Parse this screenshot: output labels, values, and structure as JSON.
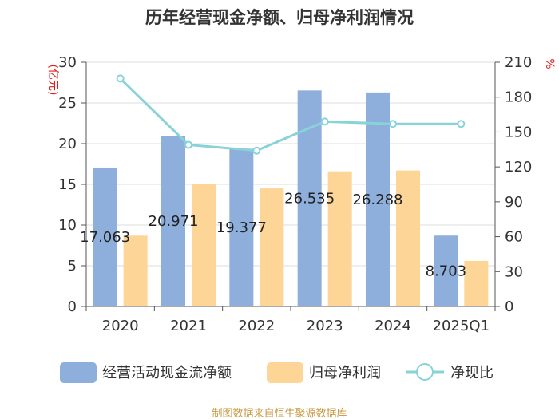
{
  "chart_data": {
    "type": "bar",
    "title": "历年经营现金净额、归母净利润情况",
    "categories": [
      "2020",
      "2021",
      "2022",
      "2023",
      "2024",
      "2025Q1"
    ],
    "series": [
      {
        "name": "经营活动现金流净额",
        "axis": "left",
        "kind": "bar",
        "values": [
          17.063,
          20.971,
          19.377,
          26.535,
          26.288,
          8.703
        ],
        "labels": [
          "17.063",
          "20.971",
          "19.377",
          "26.535",
          "26.288",
          "8.703"
        ]
      },
      {
        "name": "归母净利润",
        "axis": "left",
        "kind": "bar",
        "values": [
          8.7,
          15.1,
          14.5,
          16.6,
          16.7,
          5.6
        ]
      },
      {
        "name": "净现比",
        "axis": "right",
        "kind": "line",
        "values": [
          196,
          139,
          134,
          159,
          157,
          157
        ]
      }
    ],
    "ylabel_left": "(亿元)",
    "ylabel_right": "%",
    "ylim_left": [
      0,
      30
    ],
    "ylim_right": [
      0,
      210
    ],
    "yticks_left": [
      "0",
      "5",
      "10",
      "15",
      "20",
      "25",
      "30"
    ],
    "yticks_right": [
      "0",
      "30",
      "60",
      "90",
      "120",
      "150",
      "180",
      "210"
    ],
    "legend_position": "bottom",
    "colors": {
      "bar1": "#8eaedb",
      "bar2": "#fdd597",
      "line": "#87d3d8",
      "grid": "#dddddd",
      "axis": "#555555"
    }
  },
  "source": "制图数据来自恒生聚源数据库"
}
